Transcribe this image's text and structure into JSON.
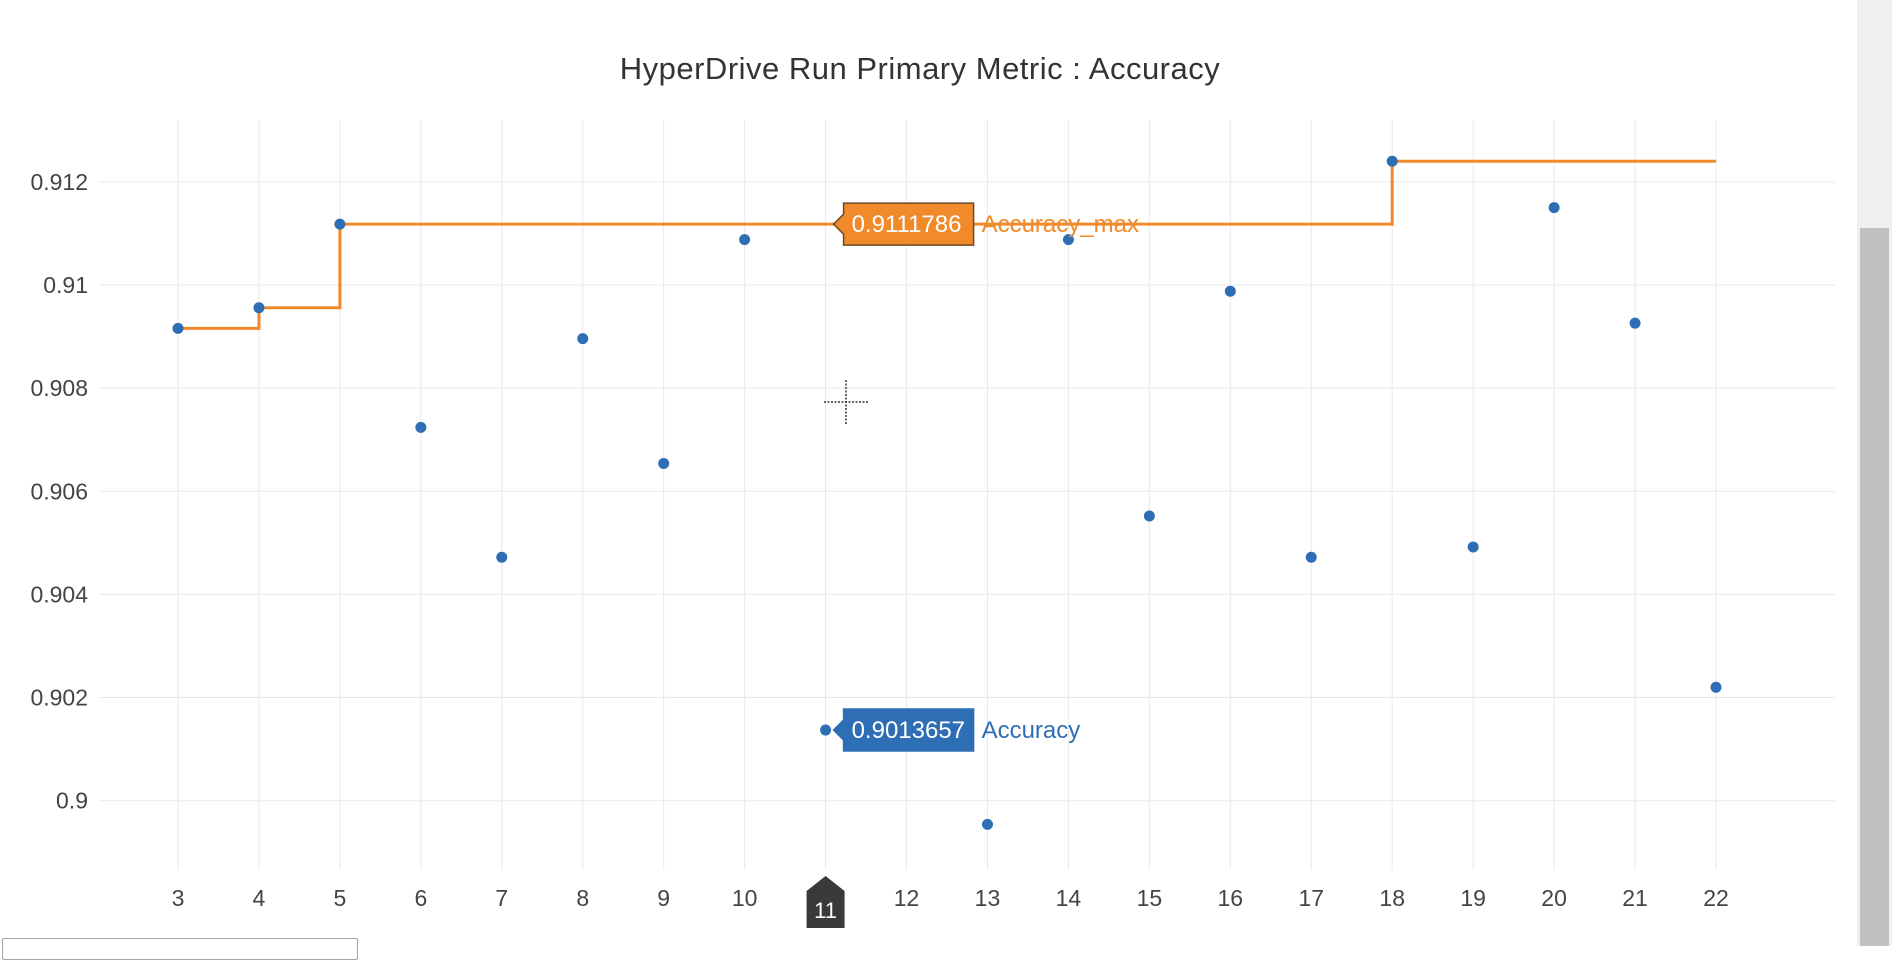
{
  "chart_data": {
    "type": "scatter",
    "title": "HyperDrive Run Primary Metric : Accuracy",
    "xlabel": "",
    "ylabel": "",
    "x_ticks": [
      3,
      4,
      5,
      6,
      7,
      8,
      9,
      10,
      11,
      12,
      13,
      14,
      15,
      16,
      17,
      18,
      19,
      20,
      21,
      22
    ],
    "y_ticks": [
      0.9,
      0.902,
      0.904,
      0.906,
      0.908,
      0.91,
      0.912
    ],
    "y_tick_labels": [
      "0.9",
      "0.902",
      "0.904",
      "0.906",
      "0.908",
      "0.91",
      "0.912"
    ],
    "xlim": [
      3,
      22
    ],
    "ylim": [
      0.89885,
      0.9132
    ],
    "grid": true,
    "series": [
      {
        "name": "Accuracy",
        "mode": "markers",
        "color": "#2e6eb4",
        "x": [
          3,
          4,
          5,
          6,
          7,
          8,
          9,
          10,
          11,
          13,
          14,
          15,
          16,
          17,
          18,
          19,
          20,
          21,
          22
        ],
        "y": [
          0.90916,
          0.90956,
          0.91118,
          0.90724,
          0.90472,
          0.90896,
          0.90654,
          0.91088,
          0.90137,
          0.89954,
          0.91088,
          0.90552,
          0.90988,
          0.90472,
          0.9124,
          0.90492,
          0.9115,
          0.90926,
          0.9022
        ]
      },
      {
        "name": "Accuracy_max",
        "mode": "line-hv",
        "color": "#f08a2a",
        "x": [
          3,
          4,
          5,
          6,
          7,
          8,
          9,
          10,
          11,
          12,
          13,
          14,
          15,
          16,
          17,
          18,
          19,
          20,
          21,
          22
        ],
        "y": [
          0.90916,
          0.90956,
          0.91118,
          0.91118,
          0.91118,
          0.91118,
          0.91118,
          0.91118,
          0.91118,
          0.91118,
          0.91118,
          0.91118,
          0.91118,
          0.91118,
          0.91118,
          0.9124,
          0.9124,
          0.9124,
          0.9124,
          0.9124
        ]
      }
    ],
    "hover": {
      "x": 11,
      "x_label": "11",
      "labels": [
        {
          "series": "Accuracy_max",
          "value": "0.9111786",
          "y": 0.91118,
          "color": "#f08a2a"
        },
        {
          "series": "Accuracy",
          "value": "0.9013657",
          "y": 0.90137,
          "color": "#2e6eb4"
        }
      ]
    }
  }
}
